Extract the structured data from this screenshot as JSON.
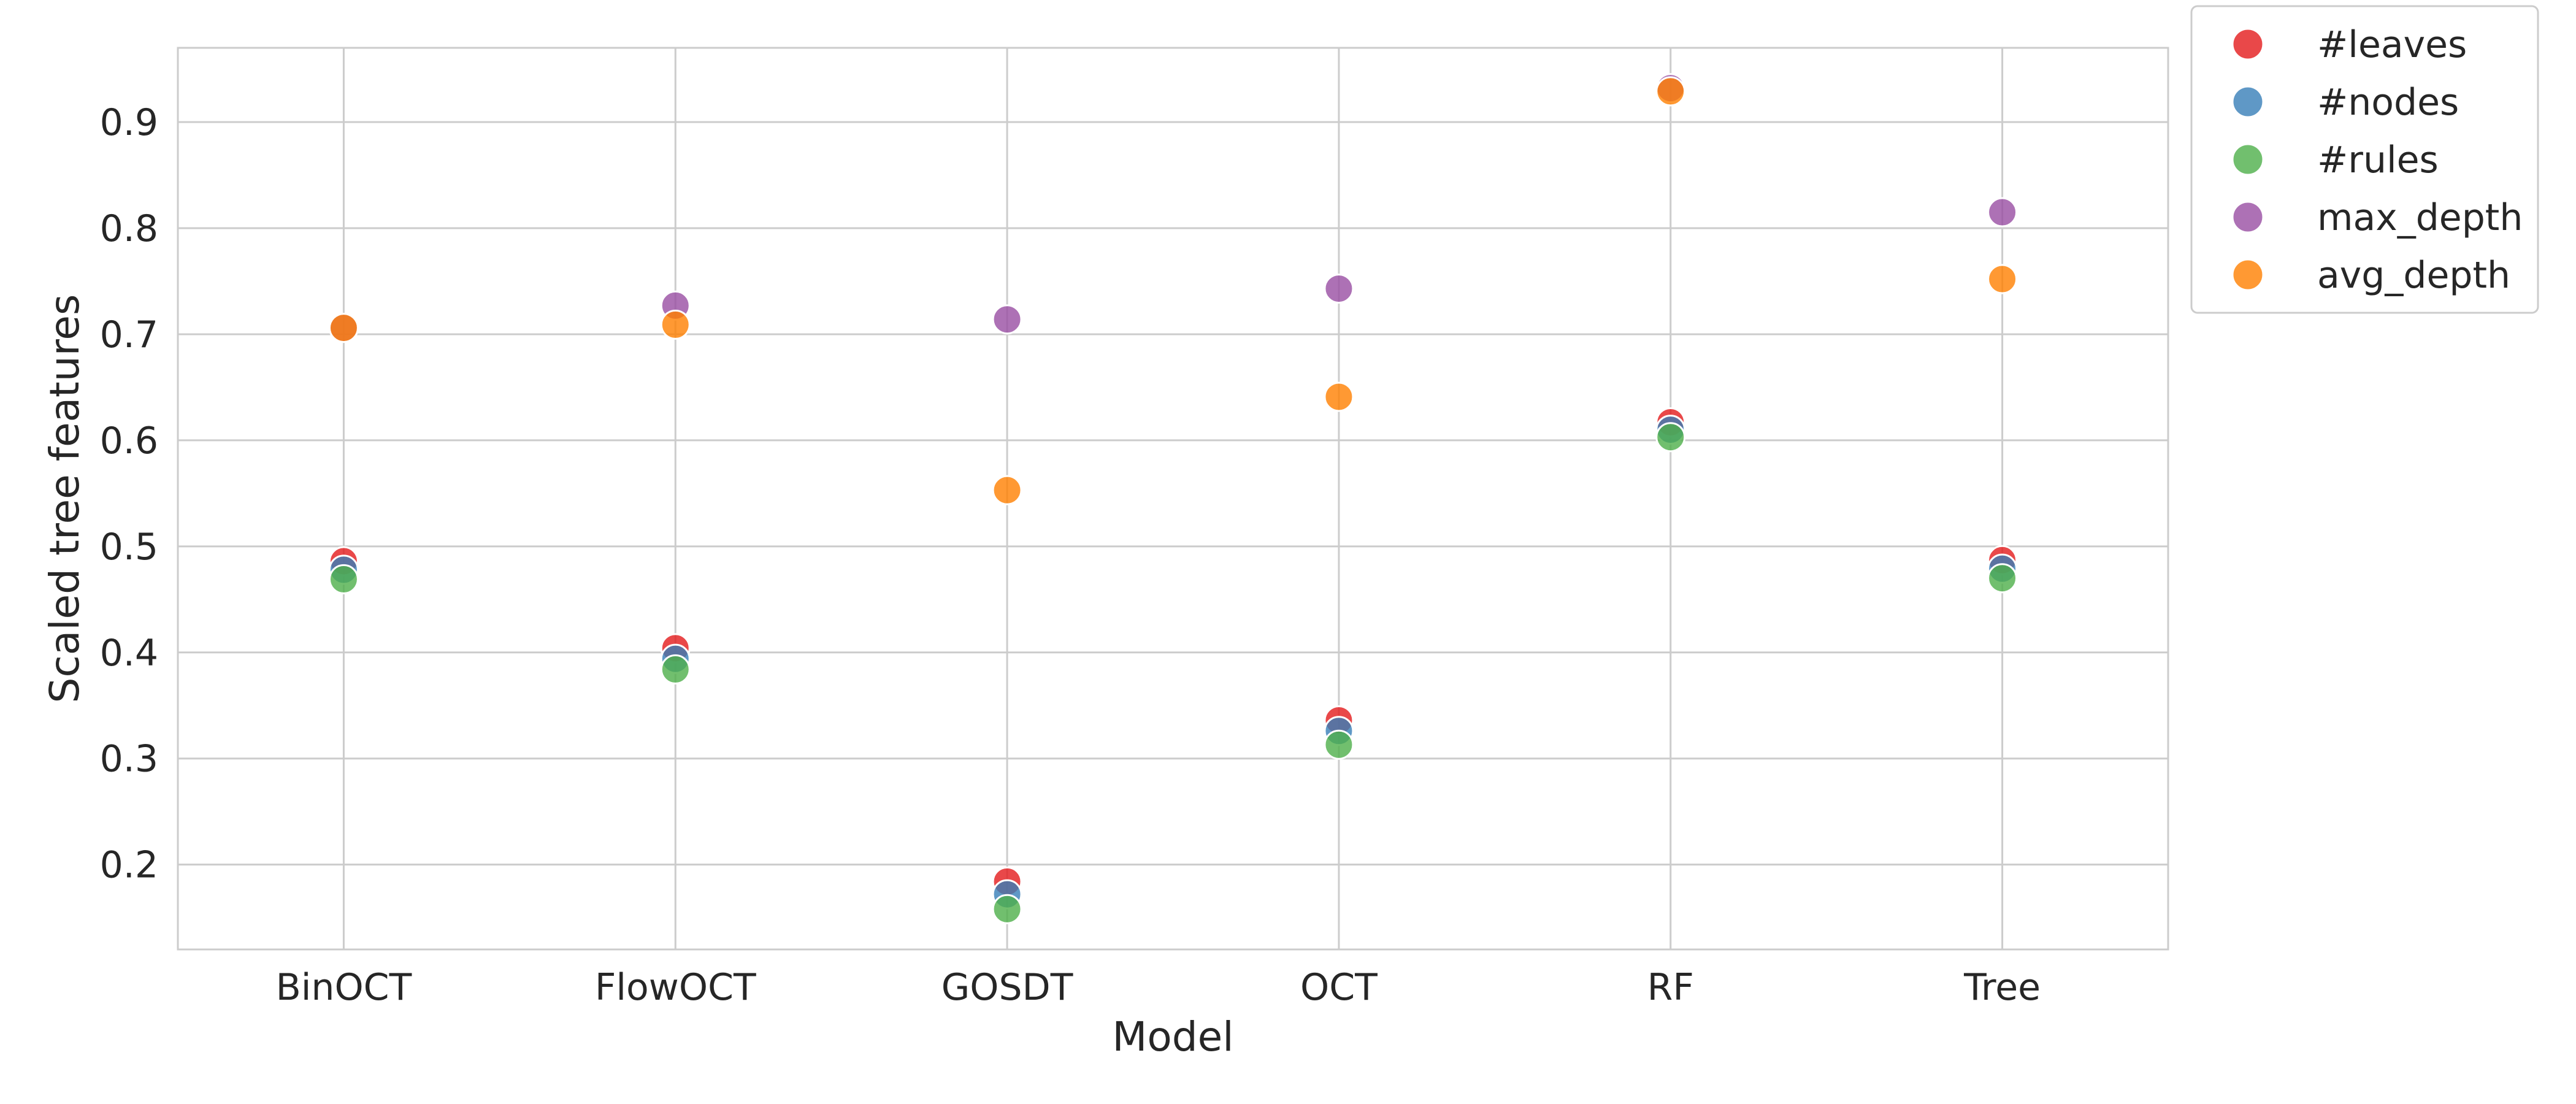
{
  "chart_data": {
    "type": "scatter",
    "xlabel": "Model",
    "ylabel": "Scaled tree features",
    "categories": [
      "BinOCT",
      "FlowOCT",
      "GOSDT",
      "OCT",
      "RF",
      "Tree"
    ],
    "ylim": [
      0.12,
      0.97
    ],
    "yticks": [
      0.2,
      0.3,
      0.4,
      0.5,
      0.6,
      0.7,
      0.8,
      0.9
    ],
    "grid": true,
    "legend_position": "outside-top-right",
    "series": [
      {
        "name": "#leaves",
        "color": "#e41a1c",
        "values": [
          0.486,
          0.404,
          0.184,
          0.336,
          0.617,
          0.487
        ]
      },
      {
        "name": "#nodes",
        "color": "#377eb8",
        "values": [
          0.478,
          0.394,
          0.172,
          0.326,
          0.61,
          0.479
        ]
      },
      {
        "name": "#rules",
        "color": "#4daf4a",
        "values": [
          0.469,
          0.384,
          0.158,
          0.313,
          0.603,
          0.47
        ]
      },
      {
        "name": "max_depth",
        "color": "#984ea3",
        "values": [
          0.706,
          0.727,
          0.714,
          0.743,
          0.932,
          0.815
        ]
      },
      {
        "name": "avg_depth",
        "color": "#ff7f00",
        "values": [
          0.706,
          0.709,
          0.553,
          0.641,
          0.929,
          0.752
        ]
      }
    ]
  }
}
